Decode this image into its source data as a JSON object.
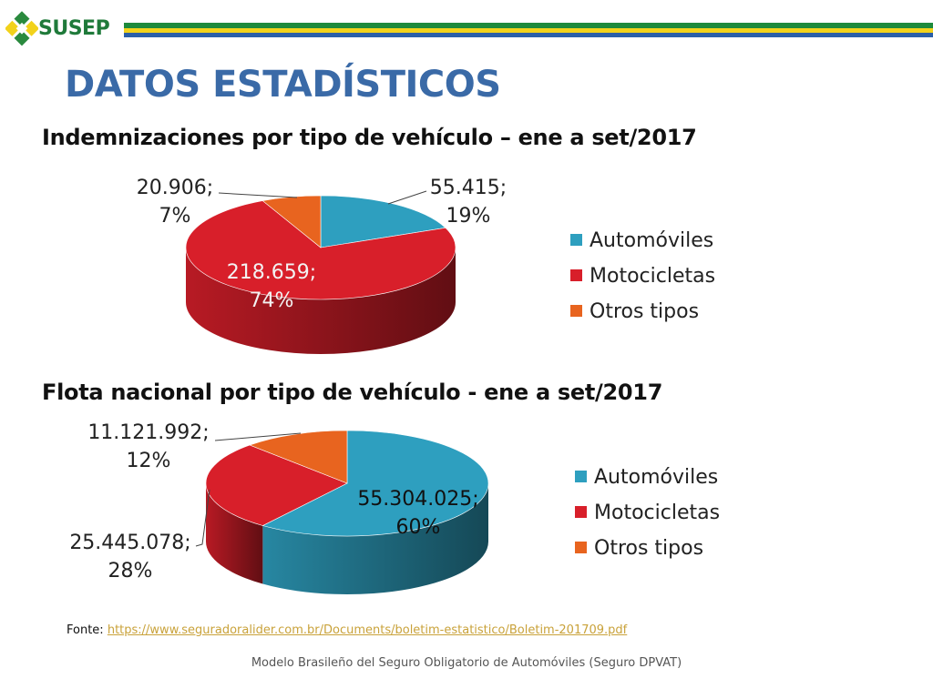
{
  "brand": {
    "logo_text": "SUSEP"
  },
  "slide": {
    "title": "DATOS ESTADÍSTICOS",
    "footer": "Modelo Brasileño del Seguro Obligatorio de Automóviles (Seguro DPVAT)"
  },
  "source": {
    "prefix": "Fonte: ",
    "link": "https://www.seguradoralider.com.br/Documents/boletim-estatistico/Boletim-201709.pdf"
  },
  "colors": {
    "automoviles": "#2e9fbf",
    "motocicletas": "#d81f2a",
    "otros": "#e8641f",
    "title": "#3a6aa7",
    "link": "#c9a23a"
  },
  "chart_data": [
    {
      "type": "pie",
      "title": "Indemnizaciones por tipo de vehículo – ene a set/2017",
      "categories": [
        "Automóviles",
        "Motocicletas",
        "Otros tipos"
      ],
      "values": [
        55415,
        218659,
        20906
      ],
      "percent": [
        19,
        74,
        7
      ],
      "labels": [
        "55.415;\n19%",
        "218.659;\n74%",
        "20.906;\n7%"
      ],
      "legend": "right"
    },
    {
      "type": "pie",
      "title": "Flota nacional por tipo de vehículo - ene a set/2017",
      "categories": [
        "Automóviles",
        "Motocicletas",
        "Otros tipos"
      ],
      "values": [
        55304025,
        25445078,
        11121992
      ],
      "percent": [
        60,
        28,
        12
      ],
      "labels": [
        "55.304.025;\n60%",
        "25.445.078;\n28%",
        "11.121.992;\n12%"
      ],
      "legend": "right"
    }
  ]
}
